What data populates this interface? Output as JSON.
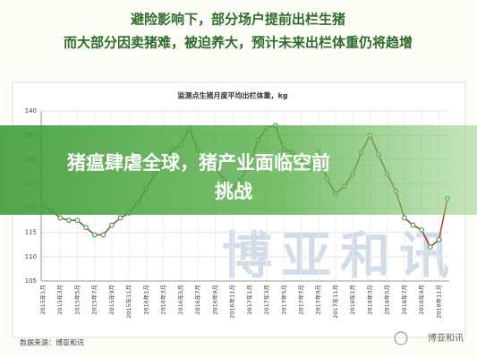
{
  "header": {
    "lines": [
      "避险影响下，部分场户提前出栏生猪",
      "而大部分因卖猪难，被迫养大，预计未来出栏体重仍将趋增"
    ]
  },
  "banner": {
    "lines": [
      "猪瘟肆虐全球，猪产业面临空前",
      "挑战"
    ]
  },
  "source": "数据来源：博亚和讯",
  "watermark": "博亚和讯",
  "logo": "博亚和讯",
  "chart_data": {
    "type": "line",
    "title": "监测点生猪月度平均出栏体重，kg",
    "categories": [
      "2015年1月",
      null,
      "2015年3月",
      null,
      "2015年5月",
      null,
      "2015年7月",
      null,
      "2015年9月",
      null,
      "2015年11月",
      null,
      "2016年1月",
      null,
      "2016年3月",
      null,
      "2016年5月",
      null,
      "2016年7月",
      null,
      "2016年9月",
      null,
      "2016年11月",
      null,
      "2017年1月",
      null,
      "2017年3月",
      null,
      "2017年5月",
      null,
      "2017年7月",
      null,
      "2017年9月",
      null,
      "2017年11月",
      null,
      "2018年1月",
      null,
      "2018年3月",
      null,
      "2018年5月",
      null,
      "2018年7月",
      null,
      "2018年9月",
      null,
      "2018年11月",
      null
    ],
    "series": [
      {
        "name": "出栏体重",
        "color": "#b23a2a",
        "marker_color": "#3aa655",
        "values": [
          120.5,
          119.5,
          118,
          117.5,
          117.5,
          116,
          114.5,
          114.5,
          116.5,
          118,
          119,
          121,
          124,
          127,
          129,
          132,
          133,
          136.5,
          132,
          129,
          128.5,
          126,
          124,
          126,
          129,
          134,
          136.5,
          137,
          132,
          131.5,
          130,
          128,
          131.5,
          126,
          123,
          124.5,
          127,
          131.5,
          135,
          131,
          127,
          123.5,
          118,
          116.5,
          115.5,
          112,
          113.5,
          122
        ]
      }
    ],
    "ylim": [
      105,
      140
    ],
    "yticks": [
      105,
      110,
      115,
      120,
      125,
      130,
      135,
      140
    ],
    "grid": true
  }
}
